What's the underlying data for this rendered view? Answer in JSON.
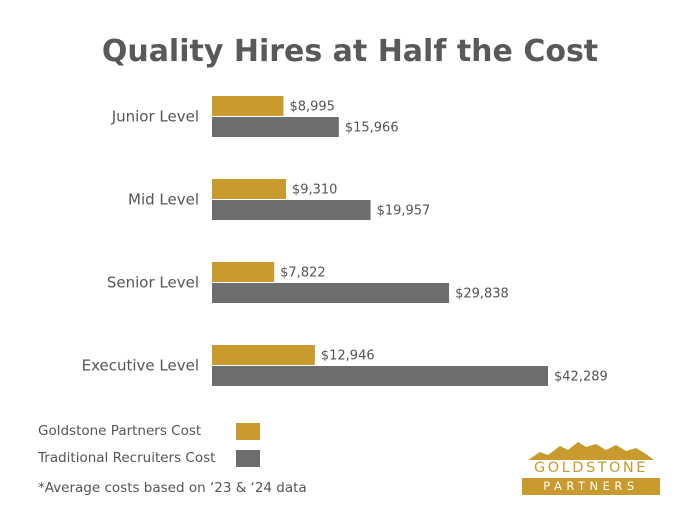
{
  "title": "Quality Hires at Half the Cost",
  "chart_data": {
    "type": "bar",
    "orientation": "horizontal",
    "categories": [
      "Junior Level",
      "Mid Level",
      "Senior Level",
      "Executive Level"
    ],
    "series": [
      {
        "name": "Goldstone Partners Cost",
        "values": [
          8995,
          9310,
          7822,
          12946
        ],
        "labels": [
          "$8,995",
          "$9,310",
          "$7,822",
          "$12,946"
        ],
        "color": "#c99a2e"
      },
      {
        "name": "Traditional Recruiters Cost",
        "values": [
          15966,
          19957,
          29838,
          42289
        ],
        "labels": [
          "$15,966",
          "$19,957",
          "$29,838",
          "$42,289"
        ],
        "color": "#6d6e70"
      }
    ],
    "xlim": [
      0,
      45000
    ],
    "grid": false,
    "legend_position": "bottom-left"
  },
  "legend": [
    {
      "label": "Goldstone Partners Cost",
      "color": "#c99a2e"
    },
    {
      "label": "Traditional Recruiters Cost",
      "color": "#6d6e70"
    }
  ],
  "footnote": "*Average costs based on ‘23 & ‘24 data",
  "logo": {
    "text_top": "GOLDSTONE",
    "text_bottom": "PARTNERS",
    "color": "#c99a2e"
  }
}
